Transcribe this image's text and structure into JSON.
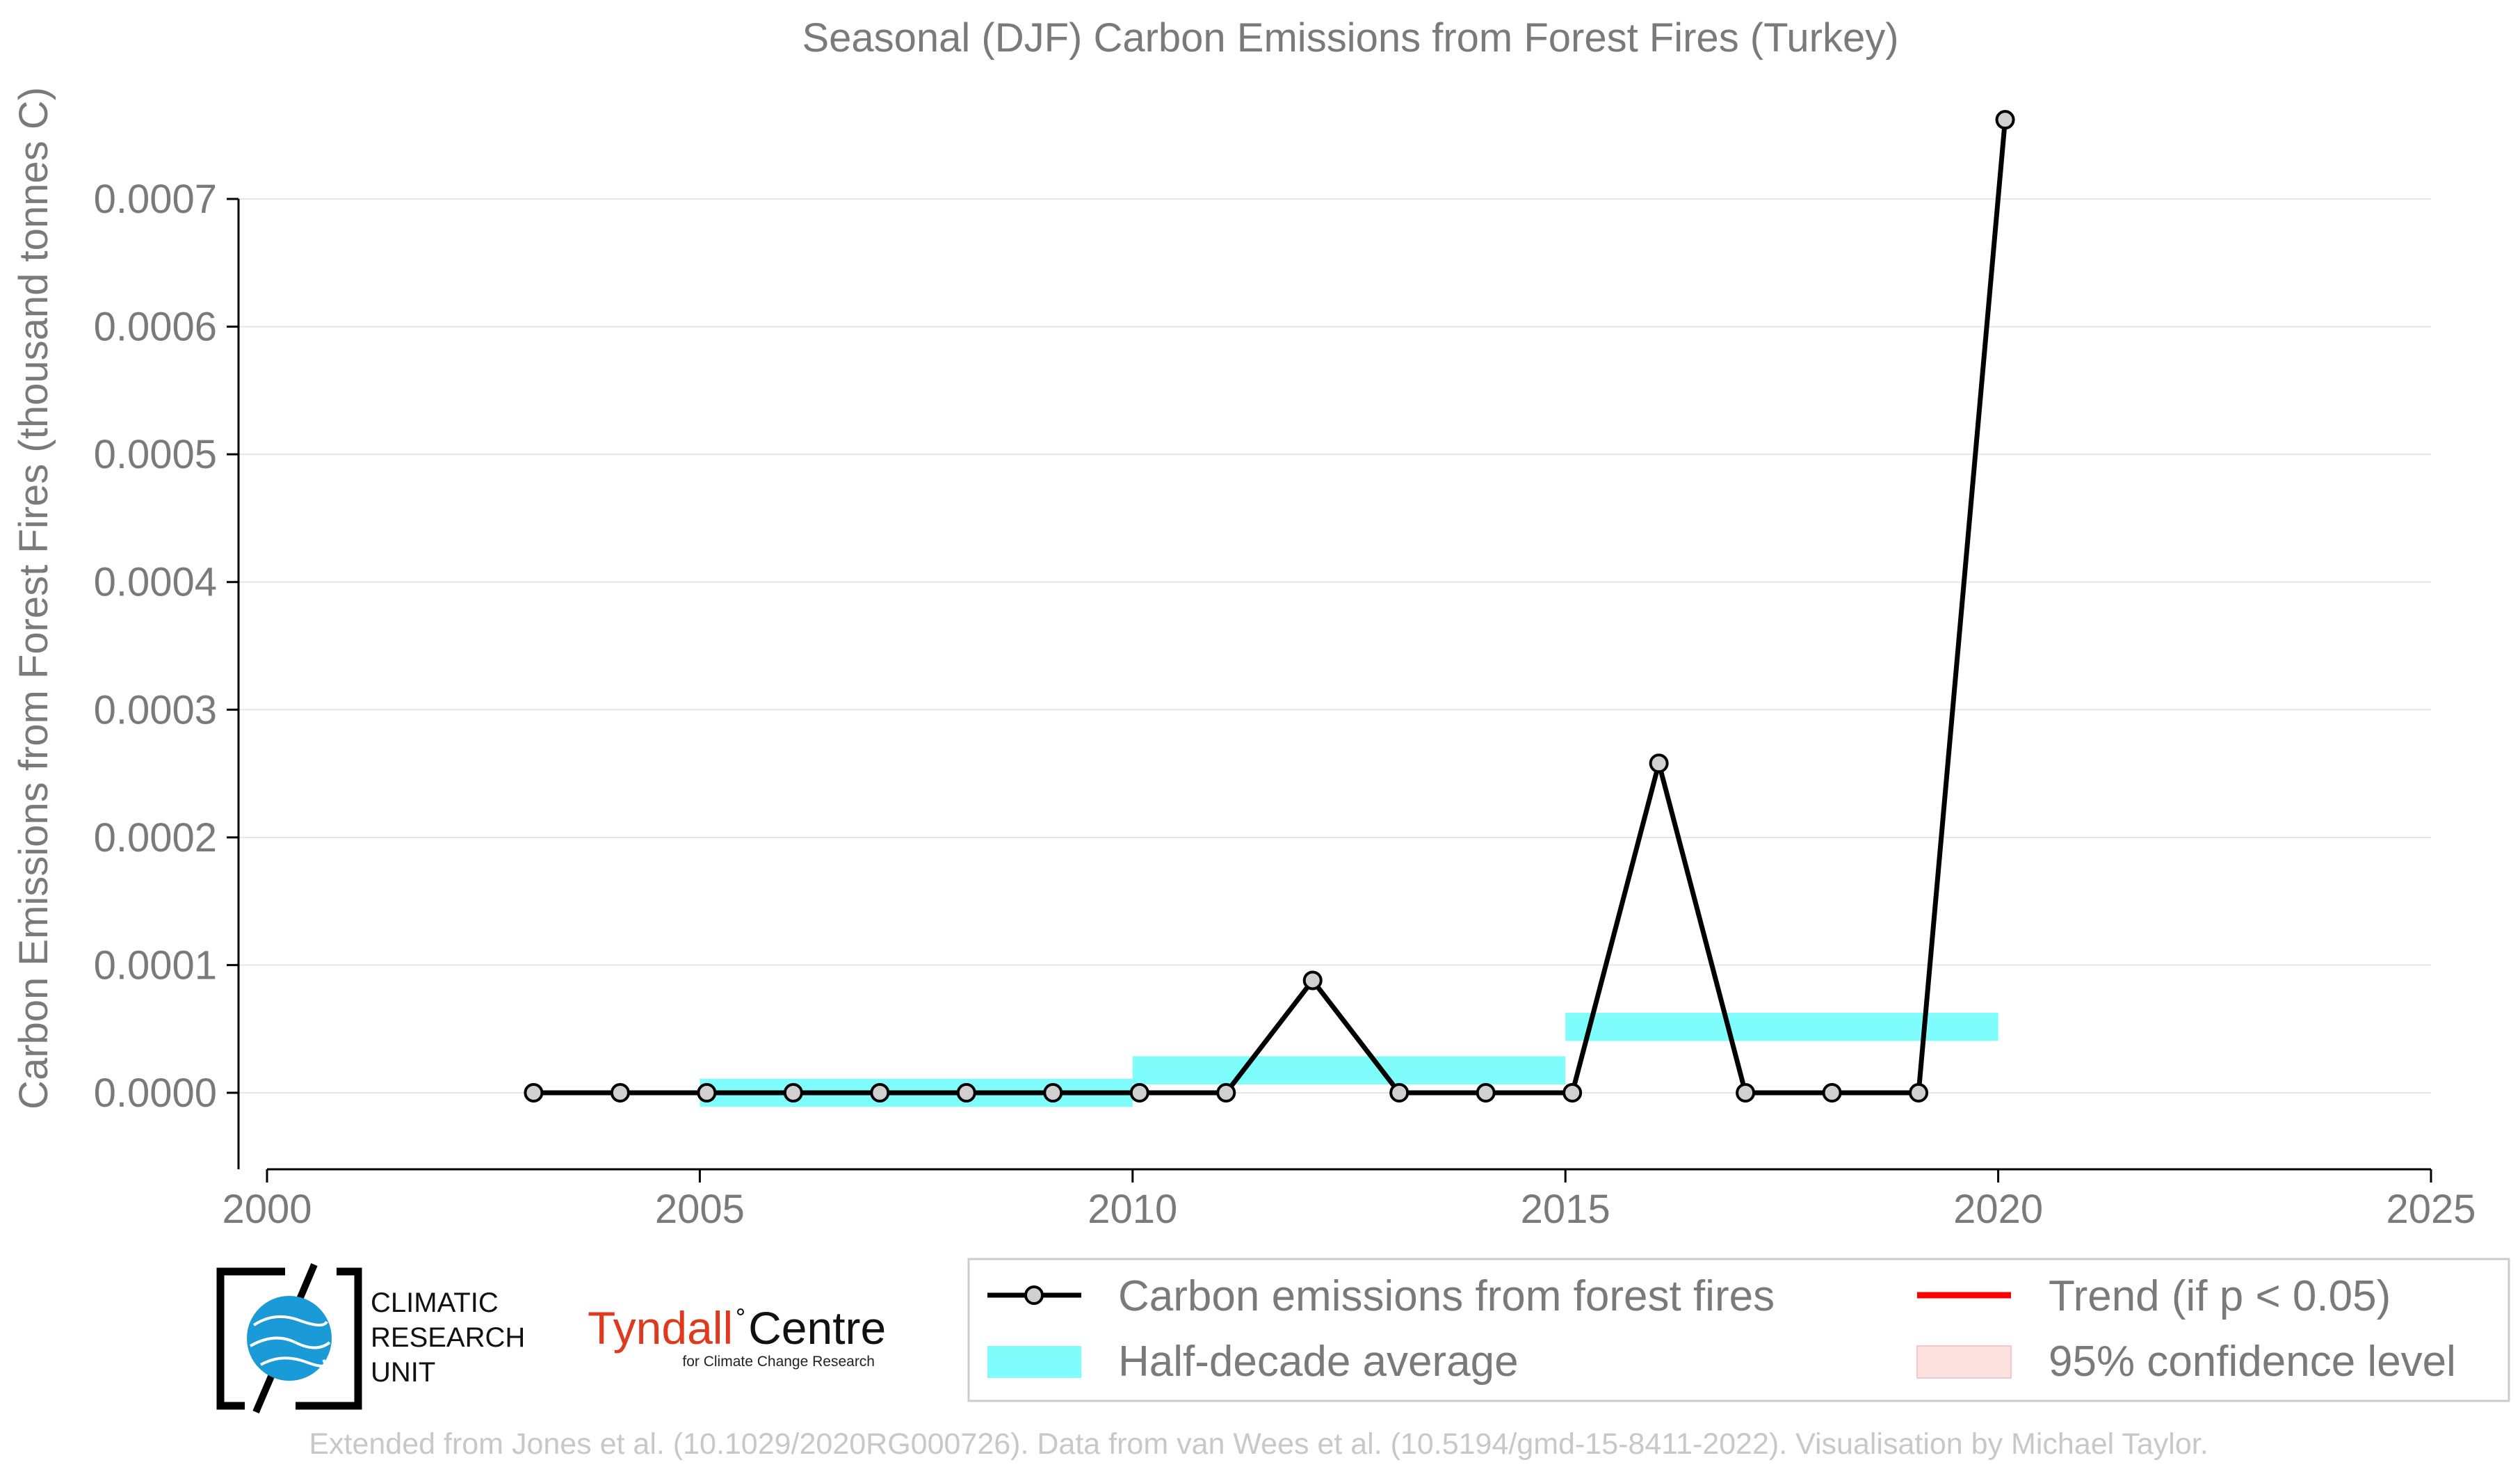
{
  "chart_data": {
    "type": "line",
    "title": "Seasonal (DJF) Carbon Emissions from Forest Fires (Turkey)",
    "xlabel": "",
    "ylabel": "Carbon Emissions from Forest Fires (thousand tonnes C)",
    "xlim": [
      2000,
      2025
    ],
    "ylim": [
      -6e-05,
      0.00077
    ],
    "x_ticks": [
      2000,
      2005,
      2010,
      2015,
      2020,
      2025
    ],
    "y_ticks": [
      0.0,
      0.0001,
      0.0002,
      0.0003,
      0.0004,
      0.0005,
      0.0006,
      0.0007
    ],
    "y_tick_labels": [
      "0.0000",
      "0.0001",
      "0.0002",
      "0.0003",
      "0.0004",
      "0.0005",
      "0.0006",
      "0.0007"
    ],
    "grid": true,
    "legend_position": "bottom-right",
    "series": [
      {
        "name": "Carbon emissions from forest fires",
        "color": "#000000",
        "marker_fill": "#d0d0d0",
        "x": [
          2003.08,
          2004.08,
          2005.08,
          2006.08,
          2007.08,
          2008.08,
          2009.08,
          2010.08,
          2011.08,
          2012.08,
          2013.08,
          2014.08,
          2015.08,
          2016.08,
          2017.08,
          2018.08,
          2019.08,
          2020.08
        ],
        "y": [
          0.0,
          0.0,
          0.0,
          0.0,
          0.0,
          0.0,
          0.0,
          0.0,
          0.0,
          8.8e-05,
          0.0,
          0.0,
          0.0,
          0.000258,
          0.0,
          0.0,
          0.0,
          0.000762
        ]
      }
    ],
    "half_decade_average": {
      "name": "Half-decade average",
      "color": "#7ffcfc",
      "segments": [
        {
          "x0": 2005,
          "x1": 2010,
          "value": 0.0
        },
        {
          "x0": 2010,
          "x1": 2015,
          "value": 1.76e-05
        },
        {
          "x0": 2015,
          "x1": 2020,
          "value": 5.16e-05
        }
      ],
      "band_half_width": 1.1e-05
    },
    "legend": [
      {
        "label": "Carbon emissions from forest fires",
        "kind": "line-marker",
        "color": "#000000"
      },
      {
        "label": "Half-decade average",
        "kind": "band",
        "color": "#7ffcfc"
      },
      {
        "label": "Trend (if p < 0.05)",
        "kind": "line",
        "color": "#ff0000"
      },
      {
        "label": "95% confidence level",
        "kind": "band",
        "color": "#fde0e0"
      }
    ]
  },
  "logos": {
    "cru_line1": "CLIMATIC",
    "cru_line2": "RESEARCH",
    "cru_line3": "UNIT",
    "tyndall_name": "Tyndall",
    "tyndall_centre": "Centre",
    "tyndall_sub": "for Climate Change Research"
  },
  "footer": "Extended from Jones et al. (10.1029/2020RG000726). Data from van Wees et al. (10.5194/gmd-15-8411-2022). Visualisation by Michael Taylor."
}
